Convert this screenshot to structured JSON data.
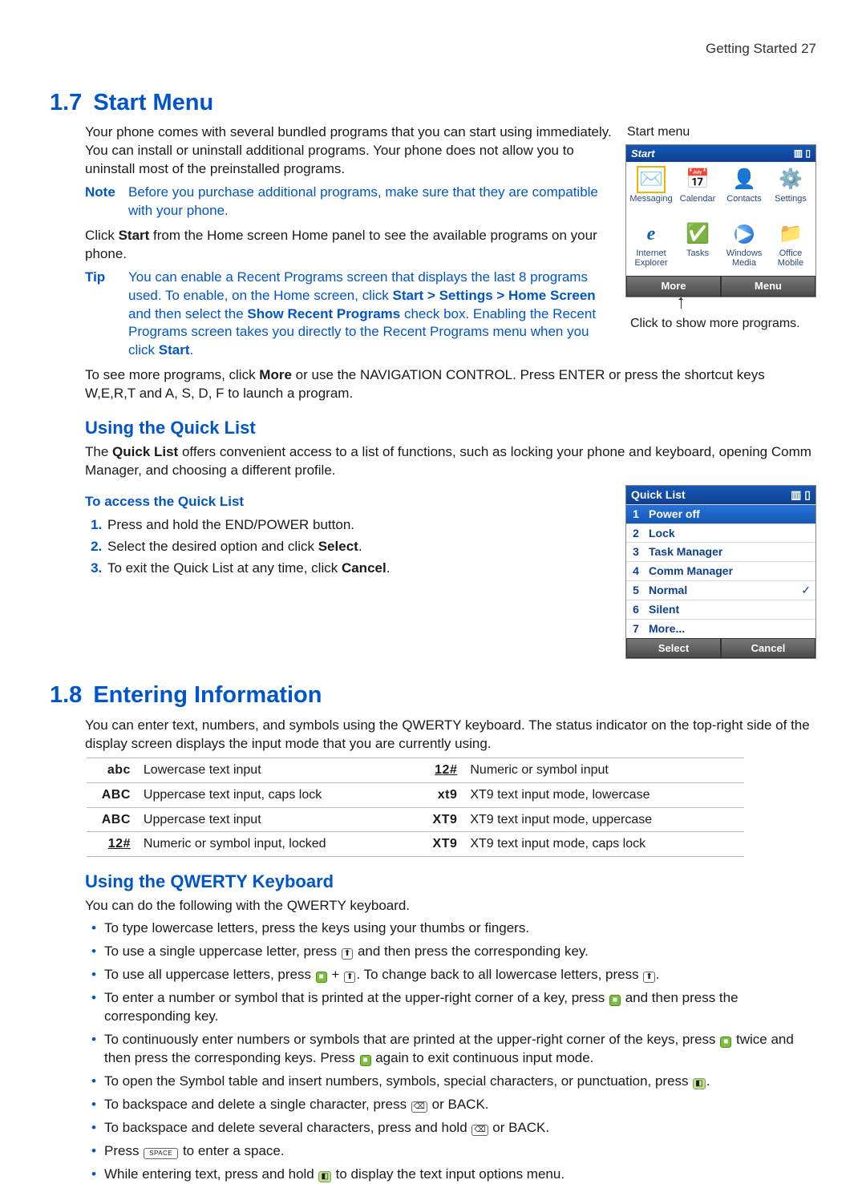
{
  "colors": {
    "heading_blue": "#0055cc",
    "body_text": "#1a1a1a",
    "gradient_top": "#1558b7",
    "gradient_bottom": "#0e3f90",
    "softkey_top": "#7a7a7a",
    "softkey_bottom": "#4a4a4a",
    "rule": "#bbb"
  },
  "running_head": "Getting Started  27",
  "s17": {
    "secno": "1.7",
    "title": "Start Menu",
    "intro": "Your phone comes with several bundled programs that you can start using immediately. You can install or uninstall additional programs. Your phone does not allow you to uninstall most of the preinstalled programs.",
    "note_label": "Note",
    "note_text": "Before you purchase additional programs, make sure that they are compatible with your phone.",
    "click_start_a": "Click ",
    "click_start_b": "Start",
    "click_start_c": " from the Home screen Home panel to see the available programs on your phone.",
    "tip_label": "Tip",
    "tip_a": "You can enable a Recent Programs screen that displays the last 8 programs used. To enable, on the Home screen, click ",
    "tip_b": "Start > Settings > Home Screen",
    "tip_c": " and then select the ",
    "tip_d": "Show Recent Programs",
    "tip_e": " check box. Enabling the Recent Programs screen takes you directly to the Recent Programs menu when you click ",
    "tip_f": "Start",
    "tip_g": ".",
    "startmenu_caption": "Start menu",
    "startmenu_title": "Start",
    "startmenu_battery": "▥ ▯",
    "startmenu_icons": [
      {
        "glyph": "✉️",
        "label": "Messaging"
      },
      {
        "glyph": "📅",
        "label": "Calendar"
      },
      {
        "glyph": "👤",
        "label": "Contacts"
      },
      {
        "glyph": "⚙️",
        "label": "Settings"
      },
      {
        "glyph": "e",
        "label": "Internet Explorer",
        "styled": "ie"
      },
      {
        "glyph": "✅",
        "label": "Tasks"
      },
      {
        "glyph": "▶",
        "label": "Windows Media",
        "styled": "wm"
      },
      {
        "glyph": "📁",
        "label": "Office Mobile"
      }
    ],
    "softkey_left": "More",
    "softkey_right": "Menu",
    "under_caption": "Click to show more programs.",
    "more_para_a": "To see more programs, click ",
    "more_para_b": "More",
    "more_para_c": " or use the NAVIGATION CONTROL. Press ENTER or press the shortcut keys W,E,R,T and A, S, D, F to launch a program."
  },
  "quicklist": {
    "heading": "Using the Quick List",
    "intro_a": "The ",
    "intro_b": "Quick List",
    "intro_c": " offers convenient access to a list of functions, such as locking your phone and keyboard, opening Comm Manager, and choosing a different profile.",
    "subhead": "To access the Quick List",
    "steps": [
      "Press and hold the END/POWER button.",
      "Select the desired option and click <b>Select</b>.",
      "To exit the Quick List at any time, click <b>Cancel</b>."
    ],
    "mock_title": "Quick List",
    "mock_battery": "▥ ▯",
    "rows": [
      {
        "n": "1",
        "label": "Power off",
        "sel": true
      },
      {
        "n": "2",
        "label": "Lock"
      },
      {
        "n": "3",
        "label": "Task Manager"
      },
      {
        "n": "4",
        "label": "Comm Manager"
      },
      {
        "n": "5",
        "label": "Normal",
        "check": true
      },
      {
        "n": "6",
        "label": "Silent"
      },
      {
        "n": "7",
        "label": "More..."
      }
    ],
    "sk_left": "Select",
    "sk_right": "Cancel"
  },
  "s18": {
    "secno": "1.8",
    "title": "Entering Information",
    "intro": "You can enter text, numbers, and symbols using the QWERTY keyboard. The status indicator on the top-right side of the display screen displays the input mode that you are currently using.",
    "modes": [
      {
        "il": "abc",
        "l": "Lowercase text input",
        "ir": "12#",
        "r": "Numeric or symbol input",
        "ul_l": false,
        "ul_r": true
      },
      {
        "il": "ABC",
        "l": "Uppercase text input, caps lock",
        "ir": "xt9",
        "r": "XT9 text input mode, lowercase"
      },
      {
        "il": "ABC",
        "l": "Uppercase text input",
        "ir": "XT9",
        "r": "XT9 text input mode, uppercase"
      },
      {
        "il": "12#",
        "l": "Numeric or symbol input, locked",
        "ir": "XT9",
        "r": "XT9 text input mode, caps lock",
        "ul_l": true
      }
    ],
    "qwerty_heading": "Using the QWERTY Keyboard",
    "qwerty_intro": "You can do the following with the QWERTY keyboard.",
    "bullets": [
      "To type lowercase letters, press the keys using your thumbs or fingers.",
      "To use a single uppercase letter, press {shift} and then press the corresponding key.",
      "To use all uppercase letters, press {fn} + {shift}. To change back to all lowercase letters, press {shift}.",
      "To enter a number or symbol that is printed at the upper-right corner of a key, press {fn} and then press the corresponding key.",
      "To continuously enter numbers or symbols that are printed at the upper-right corner of the keys, press {fn} twice and then press the corresponding keys. Press {fn} again to exit continuous input mode.",
      "To open the Symbol table and insert numbers, symbols, special characters, or punctuation, press {sym}.",
      "To backspace and delete a single character, press {bk} or BACK.",
      "To backspace and delete several characters, press and hold {bk} or BACK.",
      "Press {space} to enter a space.",
      "While entering text, press and hold {sym} to display the text input options menu."
    ],
    "keys": {
      "shift": "⬆",
      "fn": "■",
      "sym": "◧",
      "bk": "⌫",
      "space": "SPACE"
    }
  }
}
